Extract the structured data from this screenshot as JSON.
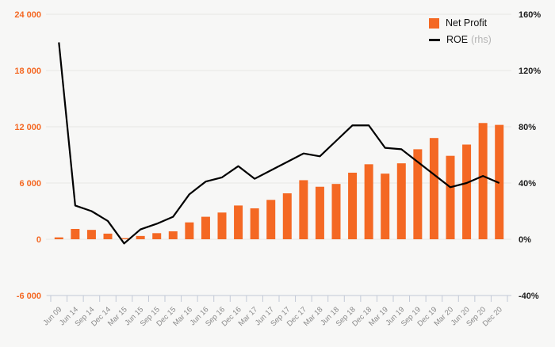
{
  "page": {
    "background": "#f7f7f6"
  },
  "legend": {
    "items": [
      {
        "label": "Net Profit",
        "type": "bar"
      },
      {
        "label": "ROE",
        "suffix": "(rhs)",
        "type": "line"
      }
    ]
  },
  "chart_data": {
    "type": "bar",
    "subtype": "combo-bar-line-dual-axis",
    "title": "",
    "xlabel": "",
    "ylabel_left": "Net Profit",
    "ylabel_right": "ROE %",
    "grid": true,
    "legend_position": "top-right",
    "categories": [
      "Jun 09",
      "Jun 14",
      "Sep 14",
      "Dec 14",
      "Mar 15",
      "Jun 15",
      "Sep 15",
      "Dec 15",
      "Mar 16",
      "Jun 16",
      "Sep 16",
      "Dec 16",
      "Mar 17",
      "Jun 17",
      "Sep 17",
      "Dec 17",
      "Mar 18",
      "Jun 18",
      "Sep 18",
      "Dec 18",
      "Mar 19",
      "Jun 19",
      "Sep 19",
      "Dec 19",
      "Mar 20",
      "Jun 20",
      "Sep 20",
      "Dec 20"
    ],
    "series": [
      {
        "name": "Net Profit",
        "type": "bar",
        "axis": "left",
        "color": "#f46823",
        "values": [
          200,
          1100,
          1000,
          600,
          120,
          350,
          650,
          850,
          1800,
          2400,
          2850,
          3600,
          3300,
          4200,
          4900,
          6300,
          5600,
          5900,
          7100,
          8000,
          7000,
          8100,
          9600,
          10800,
          8900,
          10100,
          12400,
          12200
        ]
      },
      {
        "name": "ROE",
        "type": "line",
        "axis": "right",
        "color": "#000000",
        "values": [
          140,
          24,
          20,
          13,
          -3,
          7,
          11,
          16,
          32,
          41,
          44,
          52,
          43,
          49,
          55,
          61,
          59,
          70,
          81,
          81,
          65,
          64,
          55,
          46,
          37,
          40,
          45,
          40
        ]
      }
    ],
    "left_axis": {
      "min": -6000,
      "max": 24000,
      "tick_values": [
        24000,
        18000,
        12000,
        6000,
        0,
        -6000
      ],
      "labels": [
        "24 000",
        "18 000",
        "12 000",
        "6 000",
        "0",
        "-6 000"
      ],
      "color": "#f46823"
    },
    "right_axis": {
      "min": -40,
      "max": 160,
      "tick_values": [
        160,
        120,
        80,
        40,
        0,
        -40
      ],
      "labels": [
        "160%",
        "120%",
        "80%",
        "40%",
        "0%",
        "-40%"
      ],
      "color": "#1c1c1c"
    },
    "colors": {
      "grid": "#e7e7e4",
      "axis": "#c2c9d6",
      "x_label": "#8a8a8a",
      "legend_text": "#111111",
      "legend_rhs": "#b5b5b5"
    }
  }
}
